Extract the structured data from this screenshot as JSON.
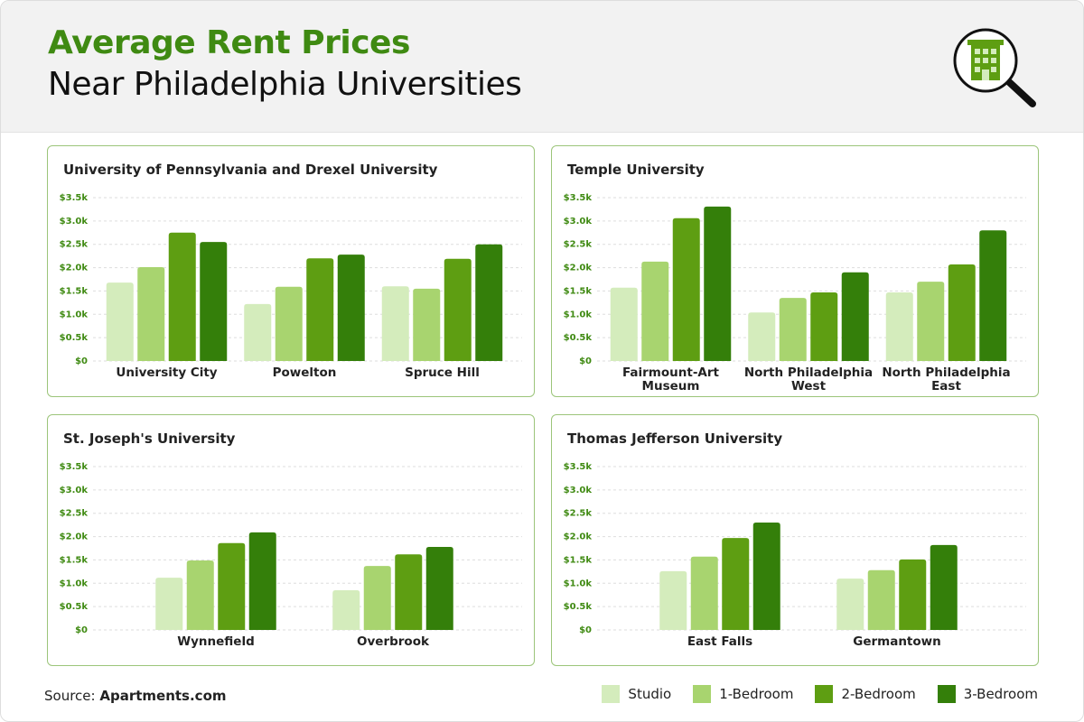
{
  "header": {
    "title": "Average Rent Prices",
    "subtitle": "Near Philadelphia Universities"
  },
  "chart_data": [
    {
      "type": "bar",
      "title": "University of Pennsylvania and Drexel University",
      "categories": [
        "University City",
        "Powelton",
        "Spruce Hill"
      ],
      "series": [
        {
          "name": "Studio",
          "color": "#d4ecbc",
          "values": [
            1680,
            1220,
            1600
          ]
        },
        {
          "name": "1-Bedroom",
          "color": "#a8d46f",
          "values": [
            2010,
            1590,
            1550
          ]
        },
        {
          "name": "2-Bedroom",
          "color": "#5e9e12",
          "values": [
            2750,
            2200,
            2190
          ]
        },
        {
          "name": "3-Bedroom",
          "color": "#347f0a",
          "values": [
            2550,
            2280,
            2500
          ]
        }
      ],
      "ylim": [
        0,
        3500
      ],
      "yticks": [
        {
          "value": 0,
          "label": "$0"
        },
        {
          "value": 500,
          "label": "$0.5k"
        },
        {
          "value": 1000,
          "label": "$1.0k"
        },
        {
          "value": 1500,
          "label": "$1.5k"
        },
        {
          "value": 2000,
          "label": "$2.0k"
        },
        {
          "value": 2500,
          "label": "$2.5k"
        },
        {
          "value": 3000,
          "label": "$3.0k"
        },
        {
          "value": 3500,
          "label": "$3.5k"
        }
      ],
      "grid": true
    },
    {
      "type": "bar",
      "title": "Temple University",
      "categories": [
        "Fairmount-Art Museum",
        "North Philadelphia West",
        "North Philadelphia East"
      ],
      "series": [
        {
          "name": "Studio",
          "color": "#d4ecbc",
          "values": [
            1570,
            1040,
            1470
          ]
        },
        {
          "name": "1-Bedroom",
          "color": "#a8d46f",
          "values": [
            2130,
            1350,
            1700
          ]
        },
        {
          "name": "2-Bedroom",
          "color": "#5e9e12",
          "values": [
            3060,
            1470,
            2070
          ]
        },
        {
          "name": "3-Bedroom",
          "color": "#347f0a",
          "values": [
            3310,
            1900,
            2800
          ]
        }
      ],
      "ylim": [
        0,
        3500
      ],
      "yticks": [
        {
          "value": 0,
          "label": "$0"
        },
        {
          "value": 500,
          "label": "$0.5k"
        },
        {
          "value": 1000,
          "label": "$1.0k"
        },
        {
          "value": 1500,
          "label": "$1.5k"
        },
        {
          "value": 2000,
          "label": "$2.0k"
        },
        {
          "value": 2500,
          "label": "$2.5k"
        },
        {
          "value": 3000,
          "label": "$3.0k"
        },
        {
          "value": 3500,
          "label": "$3.5k"
        }
      ],
      "grid": true
    },
    {
      "type": "bar",
      "title": "St. Joseph's University",
      "categories": [
        "Wynnefield",
        "Overbrook"
      ],
      "series": [
        {
          "name": "Studio",
          "color": "#d4ecbc",
          "values": [
            1120,
            850
          ]
        },
        {
          "name": "1-Bedroom",
          "color": "#a8d46f",
          "values": [
            1490,
            1370
          ]
        },
        {
          "name": "2-Bedroom",
          "color": "#5e9e12",
          "values": [
            1860,
            1620
          ]
        },
        {
          "name": "3-Bedroom",
          "color": "#347f0a",
          "values": [
            2090,
            1780
          ]
        }
      ],
      "ylim": [
        0,
        3500
      ],
      "yticks": [
        {
          "value": 0,
          "label": "$0"
        },
        {
          "value": 500,
          "label": "$0.5k"
        },
        {
          "value": 1000,
          "label": "$1.0k"
        },
        {
          "value": 1500,
          "label": "$1.5k"
        },
        {
          "value": 2000,
          "label": "$2.0k"
        },
        {
          "value": 2500,
          "label": "$2.5k"
        },
        {
          "value": 3000,
          "label": "$3.0k"
        },
        {
          "value": 3500,
          "label": "$3.5k"
        }
      ],
      "grid": true
    },
    {
      "type": "bar",
      "title": "Thomas Jefferson University",
      "categories": [
        "East Falls",
        "Germantown"
      ],
      "series": [
        {
          "name": "Studio",
          "color": "#d4ecbc",
          "values": [
            1260,
            1100
          ]
        },
        {
          "name": "1-Bedroom",
          "color": "#a8d46f",
          "values": [
            1570,
            1280
          ]
        },
        {
          "name": "2-Bedroom",
          "color": "#5e9e12",
          "values": [
            1970,
            1510
          ]
        },
        {
          "name": "3-Bedroom",
          "color": "#347f0a",
          "values": [
            2300,
            1820
          ]
        }
      ],
      "ylim": [
        0,
        3500
      ],
      "yticks": [
        {
          "value": 0,
          "label": "$0"
        },
        {
          "value": 500,
          "label": "$0.5k"
        },
        {
          "value": 1000,
          "label": "$1.0k"
        },
        {
          "value": 1500,
          "label": "$1.5k"
        },
        {
          "value": 2000,
          "label": "$2.0k"
        },
        {
          "value": 2500,
          "label": "$2.5k"
        },
        {
          "value": 3000,
          "label": "$3.0k"
        },
        {
          "value": 3500,
          "label": "$3.5k"
        }
      ],
      "grid": true
    }
  ],
  "source": {
    "label": "Source:",
    "name": "Apartments.com"
  }
}
